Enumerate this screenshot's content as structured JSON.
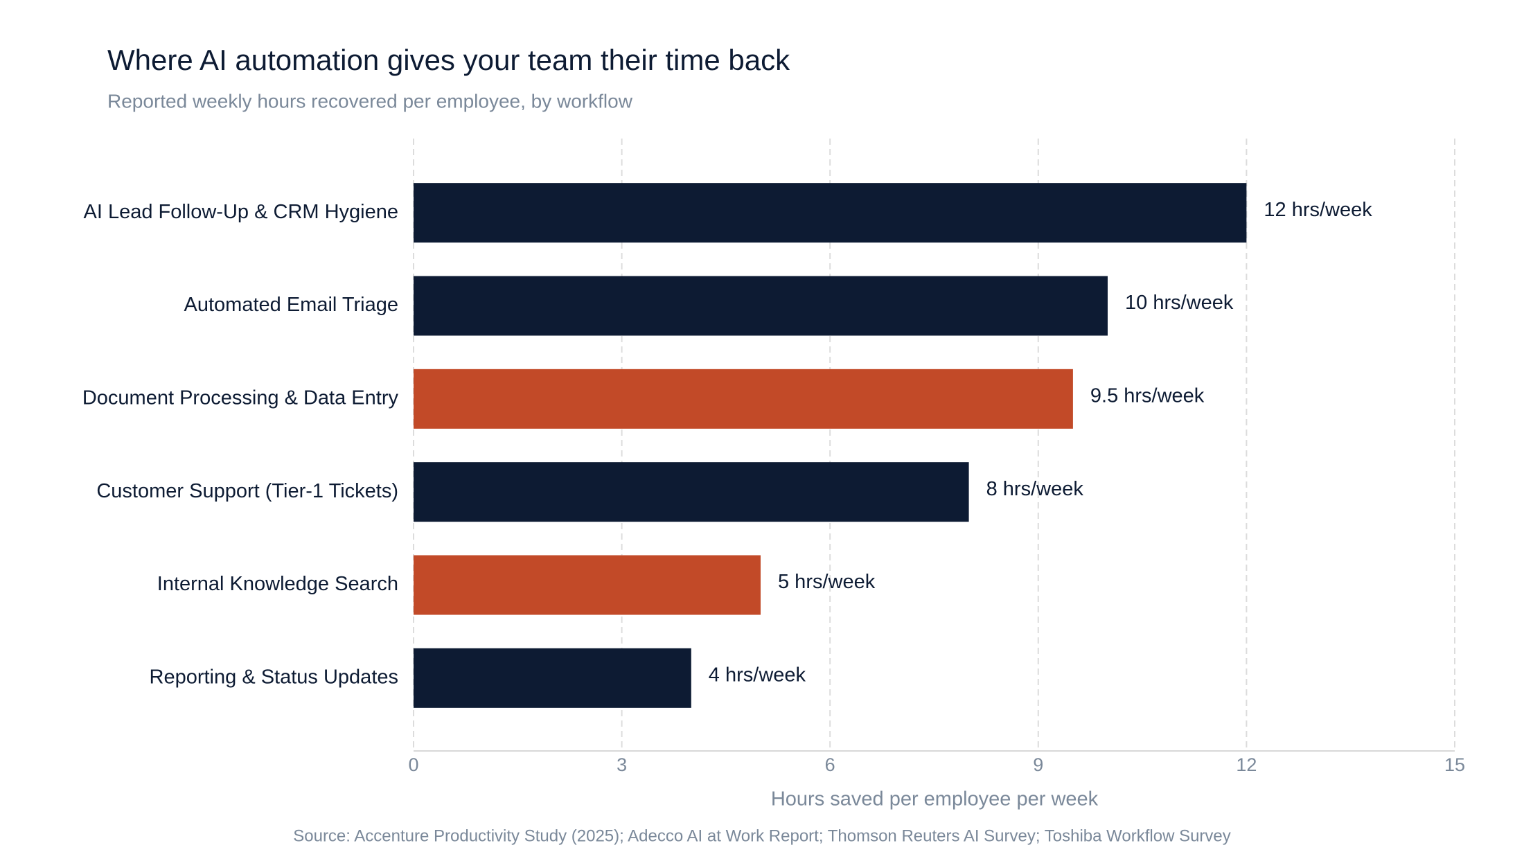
{
  "chart_data": {
    "type": "bar",
    "orientation": "horizontal",
    "title": "Where AI automation gives your team their time back",
    "subtitle": "Reported weekly hours recovered per employee, by workflow",
    "categories": [
      "AI Lead Follow-Up & CRM Hygiene",
      "Automated Email Triage",
      "Document Processing & Data Entry",
      "Customer Support (Tier-1 Tickets)",
      "Internal Knowledge Search",
      "Reporting & Status Updates"
    ],
    "values": [
      12,
      10,
      9.5,
      8,
      5,
      4
    ],
    "value_labels": [
      "12 hrs/week",
      "10 hrs/week",
      "9.5 hrs/week",
      "8 hrs/week",
      "5 hrs/week",
      "4 hrs/week"
    ],
    "colors": [
      "#0d1b33",
      "#0d1b33",
      "#c24a28",
      "#0d1b33",
      "#c24a28",
      "#0d1b33"
    ],
    "xlabel": "Hours saved per employee per week",
    "xlim": [
      0,
      15
    ],
    "xticks": [
      0,
      3,
      6,
      9,
      12,
      15
    ],
    "grid": true,
    "source": "Source: Accenture Productivity Study (2025); Adecco AI at Work Report; Thomson Reuters AI Survey; Toshiba Workflow Survey"
  }
}
